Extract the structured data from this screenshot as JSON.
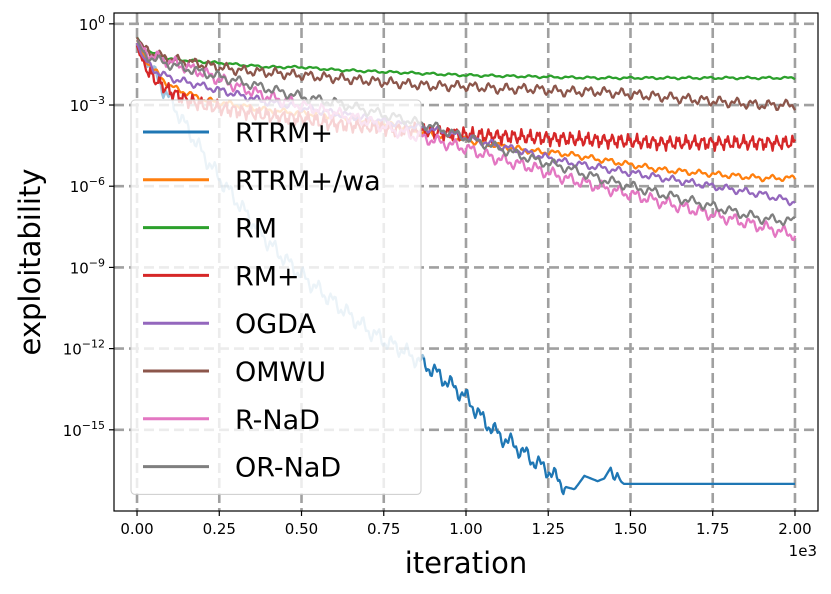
{
  "chart_data": {
    "type": "line",
    "title": "",
    "xlabel": "iteration",
    "ylabel": "exploitability",
    "x_offset_label": "1e3",
    "xscale": "linear",
    "yscale": "log",
    "xlim": [
      -0.07,
      2.07
    ],
    "ylim_exp": [
      -18.0,
      0.4
    ],
    "x_ticks": [
      0.0,
      0.25,
      0.5,
      0.75,
      1.0,
      1.25,
      1.5,
      1.75,
      2.0
    ],
    "x_tick_labels": [
      "0.00",
      "0.25",
      "0.50",
      "0.75",
      "1.00",
      "1.25",
      "1.50",
      "1.75",
      "2.00"
    ],
    "y_tick_exps": [
      0,
      -3,
      -6,
      -9,
      -12,
      -15
    ],
    "y_tick_bases": [
      "10",
      "10",
      "10",
      "10",
      "10",
      "10"
    ],
    "y_tick_sups": [
      "0",
      "−3",
      "−6",
      "−9",
      "−12",
      "−15"
    ],
    "grid": true,
    "legend_position": "upper-left",
    "series": [
      {
        "name": "RTRM+",
        "color": "#1f77b4",
        "x": [
          0.0,
          0.02,
          0.05,
          0.1,
          0.15,
          0.2,
          0.25,
          0.3,
          0.35,
          0.4,
          0.45,
          0.5,
          0.55,
          0.6,
          0.65,
          0.7,
          0.75,
          0.8,
          0.85,
          0.9,
          0.95,
          1.0,
          1.05,
          1.1,
          1.15,
          1.2,
          1.25,
          1.3,
          1.33,
          1.36,
          1.4,
          1.42,
          1.44,
          1.45,
          1.46,
          1.47,
          1.48,
          1.5,
          1.75,
          2.0
        ],
        "y_log10": [
          -0.5,
          -1.0,
          -1.8,
          -2.8,
          -3.8,
          -4.8,
          -5.7,
          -6.5,
          -7.3,
          -8.1,
          -8.7,
          -9.3,
          -9.8,
          -10.3,
          -10.8,
          -11.3,
          -11.7,
          -12.0,
          -12.4,
          -12.8,
          -13.3,
          -13.8,
          -14.6,
          -15.2,
          -15.6,
          -16.1,
          -16.5,
          -17.1,
          -17.2,
          -16.7,
          -16.9,
          -16.8,
          -16.4,
          -16.9,
          -16.6,
          -16.9,
          -17.0,
          -17.0,
          -17.0,
          -17.0
        ],
        "fade_before_x": 0.87,
        "osc_amp": 0.35,
        "osc_period": 0.045
      },
      {
        "name": "RTRM+/wa",
        "color": "#ff7f0e",
        "x": [
          0.0,
          0.02,
          0.05,
          0.1,
          0.2,
          0.3,
          0.4,
          0.5,
          0.6,
          0.7,
          0.8,
          0.9,
          1.0,
          1.1,
          1.2,
          1.3,
          1.4,
          1.5,
          1.6,
          1.7,
          1.8,
          1.9,
          2.0
        ],
        "y_log10": [
          -0.6,
          -1.2,
          -1.7,
          -2.3,
          -2.8,
          -3.0,
          -3.2,
          -3.3,
          -3.4,
          -3.6,
          -3.8,
          -4.1,
          -4.3,
          -4.5,
          -4.7,
          -4.8,
          -5.0,
          -5.2,
          -5.4,
          -5.5,
          -5.6,
          -5.7,
          -5.7
        ],
        "osc_amp": 0.12,
        "osc_period": 0.055
      },
      {
        "name": "RM",
        "color": "#2ca02c",
        "x": [
          0.0,
          0.02,
          0.05,
          0.1,
          0.2,
          0.3,
          0.4,
          0.5,
          0.6,
          0.7,
          0.8,
          0.9,
          1.0,
          1.2,
          1.4,
          1.6,
          1.8,
          2.0
        ],
        "y_log10": [
          -0.5,
          -0.9,
          -1.1,
          -1.3,
          -1.4,
          -1.5,
          -1.6,
          -1.6,
          -1.7,
          -1.75,
          -1.8,
          -1.85,
          -1.9,
          -1.95,
          -2.0,
          -2.0,
          -2.0,
          -2.0
        ],
        "osc_amp": 0.05,
        "osc_period": 0.06
      },
      {
        "name": "RM+",
        "color": "#d62728",
        "x": [
          0.0,
          0.02,
          0.05,
          0.1,
          0.15,
          0.2,
          0.3,
          0.4,
          0.5,
          0.6,
          0.7,
          0.8,
          0.9,
          1.0,
          1.2,
          1.4,
          1.6,
          1.8,
          2.0
        ],
        "y_log10": [
          -0.8,
          -1.5,
          -2.0,
          -2.5,
          -2.8,
          -3.0,
          -3.2,
          -3.4,
          -3.5,
          -3.7,
          -3.8,
          -3.9,
          -4.0,
          -4.1,
          -4.2,
          -4.3,
          -4.4,
          -4.4,
          -4.4
        ],
        "osc_amp": 0.3,
        "osc_period": 0.025
      },
      {
        "name": "OGDA",
        "color": "#9467bd",
        "x": [
          0.0,
          0.02,
          0.05,
          0.1,
          0.2,
          0.3,
          0.4,
          0.5,
          0.6,
          0.7,
          0.8,
          0.9,
          1.0,
          1.1,
          1.2,
          1.3,
          1.4,
          1.5,
          1.6,
          1.7,
          1.8,
          1.9,
          2.0
        ],
        "y_log10": [
          -0.7,
          -1.3,
          -1.7,
          -2.0,
          -2.3,
          -2.6,
          -2.9,
          -3.1,
          -3.3,
          -3.5,
          -3.7,
          -3.9,
          -4.2,
          -4.5,
          -4.8,
          -5.1,
          -5.3,
          -5.5,
          -5.7,
          -5.9,
          -6.1,
          -6.3,
          -6.6
        ],
        "osc_amp": 0.15,
        "osc_period": 0.055
      },
      {
        "name": "OMWU",
        "color": "#8c564b",
        "x": [
          0.0,
          0.02,
          0.05,
          0.1,
          0.2,
          0.3,
          0.4,
          0.5,
          0.6,
          0.7,
          0.8,
          0.9,
          1.0,
          1.1,
          1.2,
          1.3,
          1.4,
          1.5,
          1.6,
          1.7,
          1.8,
          1.9,
          2.0
        ],
        "y_log10": [
          -0.5,
          -0.9,
          -1.1,
          -1.3,
          -1.5,
          -1.7,
          -1.8,
          -1.9,
          -2.0,
          -2.1,
          -2.2,
          -2.3,
          -2.3,
          -2.4,
          -2.4,
          -2.5,
          -2.5,
          -2.6,
          -2.7,
          -2.8,
          -2.9,
          -3.0,
          -3.0
        ],
        "osc_amp": 0.2,
        "osc_period": 0.05
      },
      {
        "name": "R-NaD",
        "color": "#e377c2",
        "x": [
          0.0,
          0.02,
          0.05,
          0.1,
          0.2,
          0.3,
          0.4,
          0.5,
          0.6,
          0.7,
          0.8,
          0.9,
          1.0,
          1.1,
          1.2,
          1.3,
          1.4,
          1.5,
          1.6,
          1.7,
          1.8,
          1.9,
          2.0
        ],
        "y_log10": [
          -0.6,
          -1.0,
          -1.2,
          -1.4,
          -1.8,
          -2.3,
          -2.7,
          -3.0,
          -3.3,
          -3.6,
          -4.0,
          -4.3,
          -4.6,
          -5.0,
          -5.3,
          -5.7,
          -6.0,
          -6.3,
          -6.6,
          -6.9,
          -7.2,
          -7.5,
          -7.8
        ],
        "osc_amp": 0.25,
        "osc_period": 0.05
      },
      {
        "name": "OR-NaD",
        "color": "#7f7f7f",
        "x": [
          0.0,
          0.02,
          0.05,
          0.1,
          0.2,
          0.3,
          0.4,
          0.5,
          0.6,
          0.7,
          0.8,
          0.9,
          1.0,
          1.1,
          1.2,
          1.3,
          1.4,
          1.5,
          1.6,
          1.7,
          1.8,
          1.9,
          2.0
        ],
        "y_log10": [
          -0.6,
          -1.1,
          -1.3,
          -1.5,
          -1.8,
          -2.1,
          -2.4,
          -2.7,
          -2.9,
          -3.2,
          -3.5,
          -3.8,
          -4.2,
          -4.6,
          -5.0,
          -5.3,
          -5.7,
          -6.0,
          -6.3,
          -6.6,
          -6.9,
          -7.2,
          -7.3
        ],
        "osc_amp": 0.2,
        "osc_period": 0.06
      }
    ]
  }
}
